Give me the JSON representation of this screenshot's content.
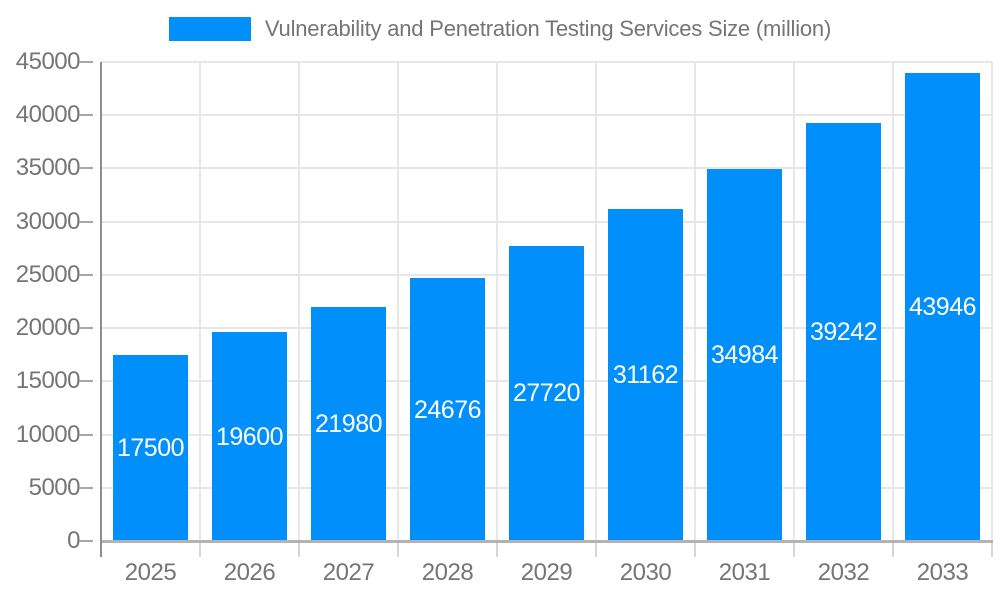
{
  "page": {
    "background": "#ffffff"
  },
  "chart_data": {
    "type": "bar",
    "title": "Vulnerability and Penetration Testing Services Size (million)",
    "legend_position": "top",
    "legend": [
      {
        "label": "Vulnerability and Penetration Testing Services Size (million)",
        "color": "#008FFB"
      }
    ],
    "categories": [
      "2025",
      "2026",
      "2027",
      "2028",
      "2029",
      "2030",
      "2031",
      "2032",
      "2033"
    ],
    "values": [
      17500,
      19600,
      21980,
      24676,
      27720,
      31162,
      34984,
      39242,
      43946
    ],
    "bar_value_labels": [
      "17500",
      "19600",
      "21980",
      "24676",
      "27720",
      "31162",
      "34984",
      "39242",
      "43946"
    ],
    "xlabel": "",
    "ylabel": "",
    "ylim": [
      0,
      45000
    ],
    "ytick_step": 5000,
    "ytick_labels": [
      "0",
      "5000",
      "10000",
      "15000",
      "20000",
      "25000",
      "30000",
      "35000",
      "40000",
      "45000"
    ],
    "grid": true,
    "colors": {
      "bar": "#008FFB",
      "bar_label_text": "#ffffff",
      "axis_text": "#757575",
      "gridline": "#e7e7e7",
      "y_axis_line": "#8e8e8e",
      "x_axis_line": "#b3b3b3",
      "x_tick": "#d6d6d6",
      "y_tick": "#a8a8a8"
    }
  }
}
